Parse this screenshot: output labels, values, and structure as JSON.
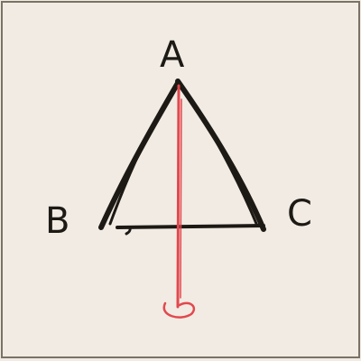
{
  "figure": {
    "vertices": {
      "a": "A",
      "b": "B",
      "c": "C"
    },
    "colors": {
      "paper": "#f1ebe3",
      "ink": "#1d1914",
      "red_line": "#e2484e"
    }
  }
}
